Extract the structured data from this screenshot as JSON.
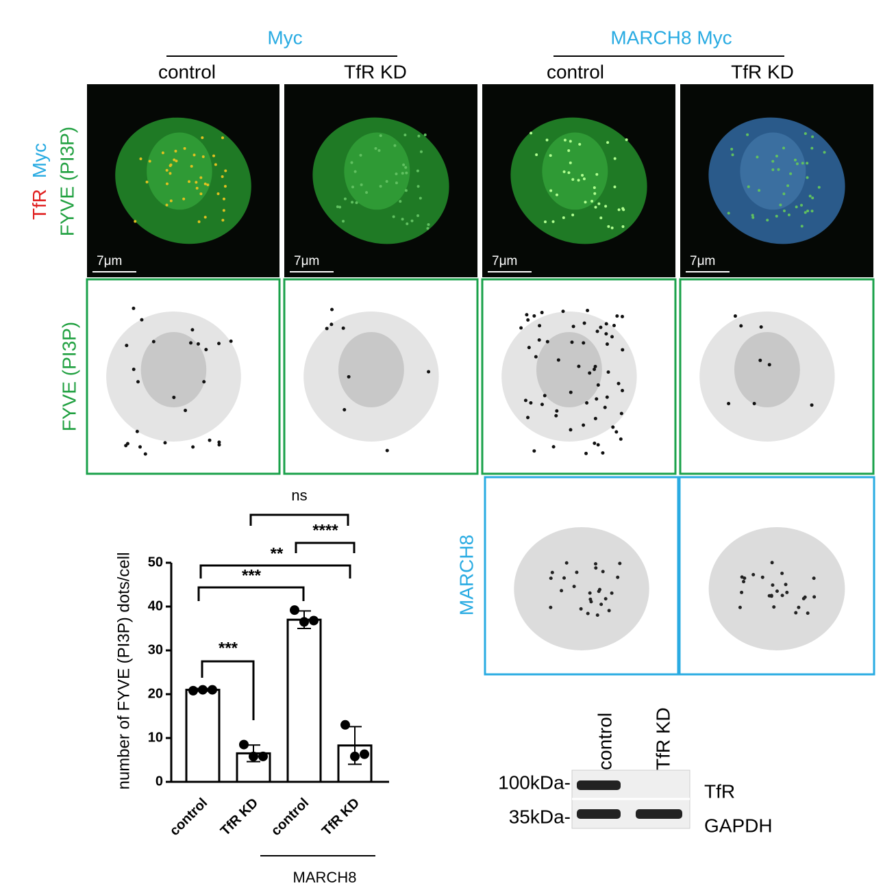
{
  "header": {
    "groups": [
      "Myc",
      "MARCH8 Myc"
    ],
    "conditions": [
      "control",
      "TfR KD",
      "control",
      "TfR KD"
    ]
  },
  "row_labels": {
    "merge": [
      "TfR",
      "Myc",
      "FYVE (PI3P)"
    ],
    "fyve": "FYVE (PI3P)",
    "march8": "MARCH8"
  },
  "scale_bars": [
    "7μm",
    "7μm",
    "7μm",
    "7μm"
  ],
  "chart_data": {
    "type": "bar",
    "y_label": "number of FYVE (PI3P) dots/cell",
    "categories": [
      "control",
      "TfR KD",
      "control",
      "TfR KD"
    ],
    "group_label": "MARCH8",
    "values": [
      21,
      6.5,
      37,
      8.3
    ],
    "errors": [
      0.3,
      1.9,
      2,
      4.3
    ],
    "points": [
      [
        20.8,
        21,
        21
      ],
      [
        8.5,
        5.8,
        5.8
      ],
      [
        39.2,
        36.5,
        36.8
      ],
      [
        13,
        5.8,
        6.3
      ]
    ],
    "ylim": [
      0,
      50
    ],
    "yticks": [
      0,
      10,
      20,
      30,
      40,
      50
    ],
    "significance": [
      "ns",
      "****",
      "**",
      "***",
      "***"
    ]
  },
  "blot": {
    "lanes": [
      "control",
      "TfR KD"
    ],
    "markers": [
      "100kDa-",
      "35kDa-"
    ],
    "proteins": [
      "TfR",
      "GAPDH"
    ]
  }
}
